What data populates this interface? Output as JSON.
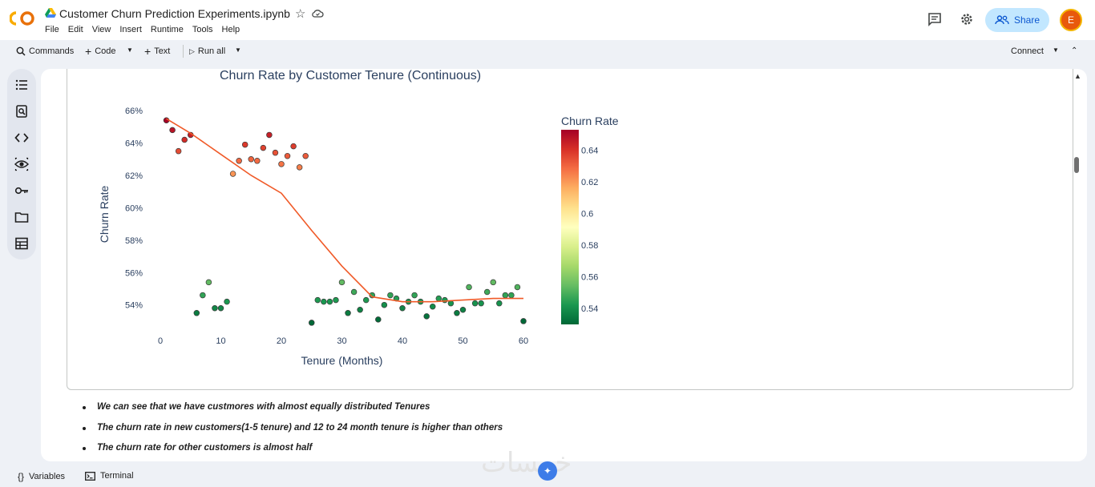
{
  "app": {
    "title": "Customer Churn Prediction Experiments.ipynb",
    "menu": [
      "File",
      "Edit",
      "View",
      "Insert",
      "Runtime",
      "Tools",
      "Help"
    ],
    "share_label": "Share",
    "avatar_letter": "E",
    "accent": "#c2e7ff",
    "avatar_color": "#e8590c"
  },
  "toolbar": {
    "commands": "Commands",
    "code": "Code",
    "text": "Text",
    "run_all": "Run all",
    "connect": "Connect"
  },
  "bottom": {
    "variables": "Variables",
    "terminal": "Terminal"
  },
  "notes": [
    "We can see that we have custmores with almost equally distributed Tenures",
    "The churn rate in new customers(1-5 tenure) and 12 to 24 month tenure is higher than others",
    "The churn rate for other customers is almost half"
  ],
  "chart_data": {
    "type": "scatter",
    "title": "Churn Rate by Customer Tenure (Continuous)",
    "xlabel": "Tenure (Months)",
    "ylabel": "Churn Rate",
    "xlim": [
      0,
      60
    ],
    "ylim": [
      52.6,
      66.6
    ],
    "x_ticks": [
      "0",
      "10",
      "20",
      "30",
      "40",
      "50",
      "60"
    ],
    "x_tick_values": [
      0,
      10,
      20,
      30,
      40,
      50,
      60
    ],
    "y_ticks": [
      "54%",
      "56%",
      "58%",
      "60%",
      "62%",
      "64%",
      "66%"
    ],
    "y_tick_values": [
      54,
      56,
      58,
      60,
      62,
      64,
      66
    ],
    "colorbar": {
      "title": "Churn Rate",
      "ticks": [
        "0.64",
        "0.62",
        "0.6",
        "0.58",
        "0.56",
        "0.54"
      ],
      "tick_values": [
        0.64,
        0.62,
        0.6,
        0.58,
        0.56,
        0.54
      ],
      "range": [
        0.53,
        0.653
      ],
      "colors": [
        "#006837",
        "#1a9850",
        "#66bd63",
        "#a6d96a",
        "#d9ef8b",
        "#ffffbf",
        "#fee08b",
        "#fdae61",
        "#f46d43",
        "#d73027",
        "#a50026"
      ]
    },
    "points": [
      [
        1,
        65.4
      ],
      [
        2,
        64.8
      ],
      [
        3,
        63.5
      ],
      [
        4,
        64.2
      ],
      [
        5,
        64.5
      ],
      [
        6,
        53.5
      ],
      [
        7,
        54.6
      ],
      [
        8,
        55.4
      ],
      [
        9,
        53.8
      ],
      [
        10,
        53.8
      ],
      [
        11,
        54.2
      ],
      [
        12,
        62.1
      ],
      [
        13,
        62.9
      ],
      [
        14,
        63.9
      ],
      [
        15,
        63.0
      ],
      [
        16,
        62.9
      ],
      [
        17,
        63.7
      ],
      [
        18,
        64.5
      ],
      [
        19,
        63.4
      ],
      [
        20,
        62.7
      ],
      [
        21,
        63.2
      ],
      [
        22,
        63.8
      ],
      [
        23,
        62.5
      ],
      [
        24,
        63.2
      ],
      [
        25,
        52.9
      ],
      [
        26,
        54.3
      ],
      [
        27,
        54.2
      ],
      [
        28,
        54.2
      ],
      [
        29,
        54.3
      ],
      [
        30,
        55.4
      ],
      [
        31,
        53.5
      ],
      [
        32,
        54.8
      ],
      [
        33,
        53.7
      ],
      [
        34,
        54.3
      ],
      [
        35,
        54.6
      ],
      [
        36,
        53.1
      ],
      [
        37,
        54.0
      ],
      [
        38,
        54.6
      ],
      [
        39,
        54.4
      ],
      [
        40,
        53.8
      ],
      [
        41,
        54.2
      ],
      [
        42,
        54.6
      ],
      [
        43,
        54.2
      ],
      [
        44,
        53.3
      ],
      [
        45,
        53.9
      ],
      [
        46,
        54.4
      ],
      [
        47,
        54.3
      ],
      [
        48,
        54.1
      ],
      [
        49,
        53.5
      ],
      [
        50,
        53.7
      ],
      [
        51,
        55.1
      ],
      [
        52,
        54.1
      ],
      [
        53,
        54.1
      ],
      [
        54,
        54.8
      ],
      [
        55,
        55.4
      ],
      [
        56,
        54.1
      ],
      [
        57,
        54.6
      ],
      [
        58,
        54.6
      ],
      [
        59,
        55.1
      ],
      [
        60,
        53.0
      ]
    ],
    "trend_line": {
      "color": "#f05a28",
      "x": [
        1,
        5,
        10,
        15,
        20,
        25,
        30,
        35,
        40,
        45,
        50,
        55,
        60
      ],
      "y": [
        65.5,
        64.6,
        63.3,
        62.0,
        60.9,
        58.6,
        56.4,
        54.5,
        54.2,
        54.2,
        54.3,
        54.4,
        54.4
      ]
    }
  }
}
